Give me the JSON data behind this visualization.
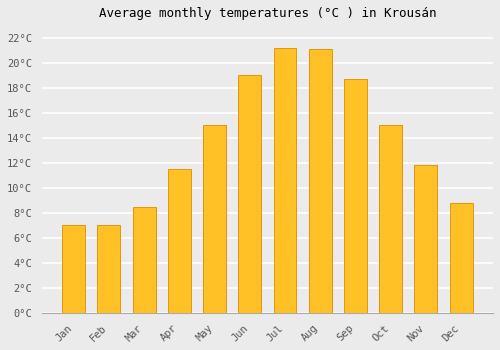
{
  "title": "Average monthly temperatures (°C ) in Krousán",
  "months": [
    "Jan",
    "Feb",
    "Mar",
    "Apr",
    "May",
    "Jun",
    "Jul",
    "Aug",
    "Sep",
    "Oct",
    "Nov",
    "Dec"
  ],
  "values": [
    7.0,
    7.0,
    8.5,
    11.5,
    15.0,
    19.0,
    21.2,
    21.1,
    18.7,
    15.0,
    11.8,
    8.8
  ],
  "bar_color": "#FFC125",
  "bar_edge_color": "#E8950A",
  "background_color": "#ebebeb",
  "plot_bg_color": "#ebebeb",
  "grid_color": "#ffffff",
  "ylim": [
    0,
    23
  ],
  "yticks": [
    0,
    2,
    4,
    6,
    8,
    10,
    12,
    14,
    16,
    18,
    20,
    22
  ],
  "title_fontsize": 9,
  "tick_fontsize": 7.5,
  "bar_width": 0.65
}
